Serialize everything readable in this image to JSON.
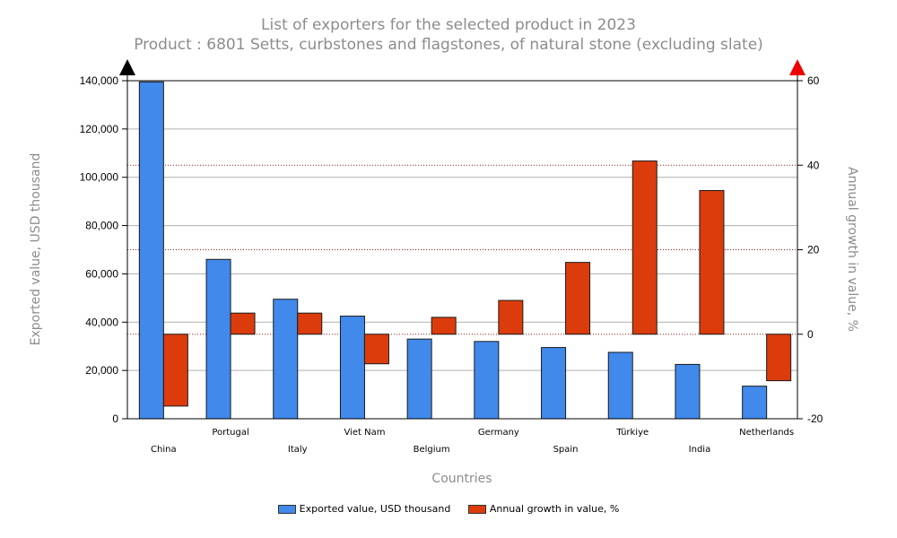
{
  "title": "List of exporters for the selected product in 2023",
  "subtitle": "Product : 6801 Setts, curbstones and flagstones, of natural stone (excluding slate)",
  "colors": {
    "series1": "#4189EB",
    "series2": "#DC3C0C",
    "grid": "#b0b0b0",
    "right_grid": "#9b1c1c"
  },
  "icons": {
    "left": "black-triangle-up-icon",
    "right": "red-triangle-up-icon"
  },
  "chart_data": {
    "type": "bar",
    "title": "List of exporters for the selected product in 2023",
    "subtitle": "Product : 6801 Setts, curbstones and flagstones, of natural stone (excluding slate)",
    "xlabel": "Countries",
    "ylabel": "Exported value, USD thousand",
    "y2label": "Annual growth in value, %",
    "categories": [
      "China",
      "Portugal",
      "Italy",
      "Viet Nam",
      "Belgium",
      "Germany",
      "Spain",
      "Türkiye",
      "India",
      "Netherlands"
    ],
    "series": [
      {
        "name": "Exported value, USD thousand",
        "axis": "left",
        "values": [
          139500,
          66000,
          49500,
          42500,
          33000,
          32000,
          29500,
          27500,
          22500,
          13500
        ]
      },
      {
        "name": "Annual growth in value, %",
        "axis": "right",
        "values": [
          -17,
          5,
          5,
          -7,
          4,
          8,
          17,
          41,
          34,
          -11
        ]
      }
    ],
    "ylim": [
      0,
      140000
    ],
    "y2lim": [
      -20,
      60
    ],
    "yticks": [
      "0",
      "20,000",
      "40,000",
      "60,000",
      "80,000",
      "100,000",
      "120,000",
      "140,000"
    ],
    "y2ticks": [
      "-20",
      "0",
      "20",
      "40",
      "60"
    ],
    "grid": true,
    "legend": "bottom-center"
  }
}
